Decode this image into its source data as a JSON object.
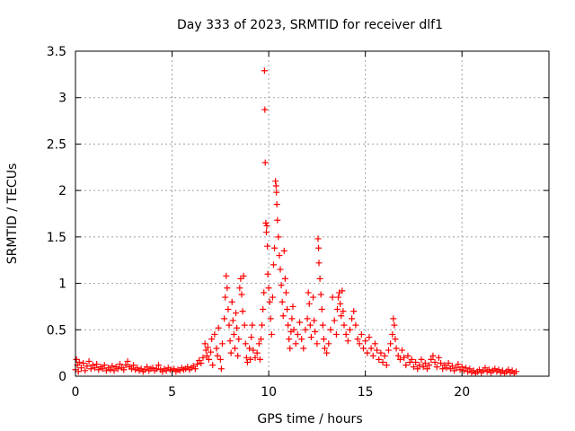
{
  "chart_data": {
    "type": "scatter",
    "title": "Day 333 of 2023, SRMTID for receiver dlf1",
    "xlabel": "GPS time / hours",
    "ylabel": "SRMTID / TECUs",
    "xlim": [
      0,
      24.5
    ],
    "ylim": [
      0,
      3.5
    ],
    "xticks": [
      0,
      5,
      10,
      15,
      20
    ],
    "yticks": [
      0,
      0.5,
      1,
      1.5,
      2,
      2.5,
      3,
      3.5
    ],
    "xtick_labels": [
      "0",
      "5",
      "10",
      "15",
      "20"
    ],
    "ytick_labels": [
      "0",
      "0.5",
      "1",
      "1.5",
      "2",
      "2.5",
      "3",
      "3.5"
    ],
    "grid": true,
    "marker": "+",
    "color": "#ff0000",
    "series": [
      {
        "name": "SRMTID",
        "points": [
          [
            0.0,
            0.07
          ],
          [
            0.05,
            0.18
          ],
          [
            0.1,
            0.12
          ],
          [
            0.15,
            0.05
          ],
          [
            0.2,
            0.15
          ],
          [
            0.3,
            0.09
          ],
          [
            0.4,
            0.14
          ],
          [
            0.5,
            0.06
          ],
          [
            0.6,
            0.11
          ],
          [
            0.7,
            0.16
          ],
          [
            0.8,
            0.08
          ],
          [
            0.9,
            0.12
          ],
          [
            1.0,
            0.09
          ],
          [
            1.1,
            0.13
          ],
          [
            1.2,
            0.07
          ],
          [
            1.3,
            0.1
          ],
          [
            1.4,
            0.08
          ],
          [
            1.5,
            0.12
          ],
          [
            1.6,
            0.06
          ],
          [
            1.7,
            0.09
          ],
          [
            1.8,
            0.07
          ],
          [
            1.9,
            0.11
          ],
          [
            2.0,
            0.06
          ],
          [
            2.1,
            0.1
          ],
          [
            2.2,
            0.08
          ],
          [
            2.3,
            0.13
          ],
          [
            2.4,
            0.09
          ],
          [
            2.5,
            0.07
          ],
          [
            2.6,
            0.12
          ],
          [
            2.7,
            0.16
          ],
          [
            2.8,
            0.1
          ],
          [
            2.9,
            0.08
          ],
          [
            3.0,
            0.12
          ],
          [
            3.1,
            0.07
          ],
          [
            3.2,
            0.09
          ],
          [
            3.3,
            0.06
          ],
          [
            3.4,
            0.08
          ],
          [
            3.5,
            0.05
          ],
          [
            3.6,
            0.07
          ],
          [
            3.7,
            0.1
          ],
          [
            3.8,
            0.06
          ],
          [
            3.9,
            0.08
          ],
          [
            4.0,
            0.09
          ],
          [
            4.1,
            0.06
          ],
          [
            4.2,
            0.08
          ],
          [
            4.3,
            0.12
          ],
          [
            4.4,
            0.07
          ],
          [
            4.5,
            0.05
          ],
          [
            4.6,
            0.08
          ],
          [
            4.7,
            0.06
          ],
          [
            4.8,
            0.09
          ],
          [
            4.9,
            0.07
          ],
          [
            5.0,
            0.06
          ],
          [
            5.1,
            0.08
          ],
          [
            5.2,
            0.05
          ],
          [
            5.3,
            0.07
          ],
          [
            5.4,
            0.06
          ],
          [
            5.5,
            0.09
          ],
          [
            5.6,
            0.07
          ],
          [
            5.7,
            0.08
          ],
          [
            5.8,
            0.1
          ],
          [
            5.9,
            0.07
          ],
          [
            6.0,
            0.09
          ],
          [
            6.1,
            0.11
          ],
          [
            6.2,
            0.08
          ],
          [
            6.3,
            0.13
          ],
          [
            6.4,
            0.17
          ],
          [
            6.5,
            0.14
          ],
          [
            6.6,
            0.2
          ],
          [
            6.7,
            0.35
          ],
          [
            6.75,
            0.28
          ],
          [
            6.8,
            0.22
          ],
          [
            6.85,
            0.31
          ],
          [
            6.9,
            0.18
          ],
          [
            7.0,
            0.26
          ],
          [
            7.05,
            0.4
          ],
          [
            7.1,
            0.12
          ],
          [
            7.2,
            0.45
          ],
          [
            7.3,
            0.3
          ],
          [
            7.35,
            0.22
          ],
          [
            7.4,
            0.52
          ],
          [
            7.5,
            0.18
          ],
          [
            7.55,
            0.08
          ],
          [
            7.6,
            0.35
          ],
          [
            7.7,
            0.62
          ],
          [
            7.75,
            0.85
          ],
          [
            7.8,
            1.08
          ],
          [
            7.85,
            0.95
          ],
          [
            7.9,
            0.72
          ],
          [
            7.95,
            0.55
          ],
          [
            8.0,
            0.38
          ],
          [
            8.05,
            0.25
          ],
          [
            8.1,
            0.8
          ],
          [
            8.15,
            0.6
          ],
          [
            8.2,
            0.45
          ],
          [
            8.25,
            0.3
          ],
          [
            8.3,
            0.68
          ],
          [
            8.35,
            0.52
          ],
          [
            8.4,
            0.22
          ],
          [
            8.45,
            0.4
          ],
          [
            8.5,
            0.95
          ],
          [
            8.55,
            1.05
          ],
          [
            8.6,
            0.88
          ],
          [
            8.65,
            0.7
          ],
          [
            8.7,
            1.08
          ],
          [
            8.75,
            0.55
          ],
          [
            8.8,
            0.35
          ],
          [
            8.85,
            0.2
          ],
          [
            8.9,
            0.15
          ],
          [
            9.0,
            0.3
          ],
          [
            9.05,
            0.18
          ],
          [
            9.1,
            0.42
          ],
          [
            9.15,
            0.55
          ],
          [
            9.2,
            0.28
          ],
          [
            9.3,
            0.2
          ],
          [
            9.4,
            0.25
          ],
          [
            9.5,
            0.35
          ],
          [
            9.55,
            0.18
          ],
          [
            9.6,
            0.4
          ],
          [
            9.65,
            0.55
          ],
          [
            9.7,
            0.72
          ],
          [
            9.75,
            0.9
          ],
          [
            9.78,
            3.29
          ],
          [
            9.8,
            2.87
          ],
          [
            9.82,
            2.3
          ],
          [
            9.85,
            1.65
          ],
          [
            9.88,
            1.55
          ],
          [
            9.9,
            1.62
          ],
          [
            9.93,
            1.4
          ],
          [
            9.95,
            1.1
          ],
          [
            10.0,
            0.95
          ],
          [
            10.05,
            0.8
          ],
          [
            10.1,
            0.62
          ],
          [
            10.15,
            0.45
          ],
          [
            10.2,
            0.85
          ],
          [
            10.25,
            1.2
          ],
          [
            10.3,
            1.38
          ],
          [
            10.35,
            2.1
          ],
          [
            10.38,
            2.05
          ],
          [
            10.4,
            1.98
          ],
          [
            10.42,
            1.85
          ],
          [
            10.45,
            1.68
          ],
          [
            10.5,
            1.5
          ],
          [
            10.55,
            1.3
          ],
          [
            10.6,
            1.15
          ],
          [
            10.65,
            0.98
          ],
          [
            10.7,
            0.8
          ],
          [
            10.75,
            0.65
          ],
          [
            10.8,
            1.35
          ],
          [
            10.85,
            1.05
          ],
          [
            10.9,
            0.9
          ],
          [
            10.95,
            0.72
          ],
          [
            11.0,
            0.55
          ],
          [
            11.05,
            0.4
          ],
          [
            11.1,
            0.3
          ],
          [
            11.15,
            0.48
          ],
          [
            11.2,
            0.62
          ],
          [
            11.25,
            0.75
          ],
          [
            11.3,
            0.5
          ],
          [
            11.4,
            0.35
          ],
          [
            11.5,
            0.45
          ],
          [
            11.6,
            0.58
          ],
          [
            11.7,
            0.4
          ],
          [
            11.8,
            0.3
          ],
          [
            11.9,
            0.5
          ],
          [
            12.0,
            0.62
          ],
          [
            12.05,
            0.9
          ],
          [
            12.1,
            0.78
          ],
          [
            12.15,
            0.55
          ],
          [
            12.2,
            0.42
          ],
          [
            12.3,
            0.85
          ],
          [
            12.35,
            0.6
          ],
          [
            12.4,
            0.48
          ],
          [
            12.5,
            0.35
          ],
          [
            12.55,
            1.48
          ],
          [
            12.58,
            1.38
          ],
          [
            12.6,
            1.22
          ],
          [
            12.65,
            1.05
          ],
          [
            12.7,
            0.88
          ],
          [
            12.75,
            0.72
          ],
          [
            12.8,
            0.55
          ],
          [
            12.85,
            0.4
          ],
          [
            12.9,
            0.3
          ],
          [
            13.0,
            0.25
          ],
          [
            13.1,
            0.35
          ],
          [
            13.2,
            0.5
          ],
          [
            13.3,
            0.85
          ],
          [
            13.4,
            0.6
          ],
          [
            13.5,
            0.45
          ],
          [
            13.55,
            0.72
          ],
          [
            13.6,
            0.85
          ],
          [
            13.65,
            0.9
          ],
          [
            13.7,
            0.78
          ],
          [
            13.75,
            0.65
          ],
          [
            13.8,
            0.92
          ],
          [
            13.85,
            0.7
          ],
          [
            13.9,
            0.55
          ],
          [
            14.0,
            0.45
          ],
          [
            14.1,
            0.38
          ],
          [
            14.2,
            0.5
          ],
          [
            14.3,
            0.62
          ],
          [
            14.4,
            0.7
          ],
          [
            14.5,
            0.55
          ],
          [
            14.6,
            0.4
          ],
          [
            14.7,
            0.35
          ],
          [
            14.8,
            0.45
          ],
          [
            14.9,
            0.3
          ],
          [
            15.0,
            0.38
          ],
          [
            15.1,
            0.25
          ],
          [
            15.2,
            0.42
          ],
          [
            15.3,
            0.3
          ],
          [
            15.4,
            0.22
          ],
          [
            15.5,
            0.35
          ],
          [
            15.6,
            0.28
          ],
          [
            15.7,
            0.18
          ],
          [
            15.8,
            0.25
          ],
          [
            15.9,
            0.15
          ],
          [
            16.0,
            0.22
          ],
          [
            16.1,
            0.12
          ],
          [
            16.2,
            0.28
          ],
          [
            16.3,
            0.35
          ],
          [
            16.4,
            0.45
          ],
          [
            16.45,
            0.62
          ],
          [
            16.5,
            0.55
          ],
          [
            16.55,
            0.4
          ],
          [
            16.6,
            0.3
          ],
          [
            16.7,
            0.22
          ],
          [
            16.8,
            0.18
          ],
          [
            16.9,
            0.28
          ],
          [
            17.0,
            0.2
          ],
          [
            17.1,
            0.12
          ],
          [
            17.2,
            0.22
          ],
          [
            17.3,
            0.15
          ],
          [
            17.4,
            0.18
          ],
          [
            17.5,
            0.1
          ],
          [
            17.6,
            0.15
          ],
          [
            17.7,
            0.08
          ],
          [
            17.8,
            0.12
          ],
          [
            17.9,
            0.18
          ],
          [
            18.0,
            0.1
          ],
          [
            18.1,
            0.14
          ],
          [
            18.2,
            0.08
          ],
          [
            18.3,
            0.12
          ],
          [
            18.4,
            0.18
          ],
          [
            18.5,
            0.22
          ],
          [
            18.6,
            0.15
          ],
          [
            18.7,
            0.1
          ],
          [
            18.8,
            0.2
          ],
          [
            18.9,
            0.14
          ],
          [
            19.0,
            0.08
          ],
          [
            19.1,
            0.12
          ],
          [
            19.2,
            0.09
          ],
          [
            19.3,
            0.14
          ],
          [
            19.4,
            0.08
          ],
          [
            19.5,
            0.11
          ],
          [
            19.6,
            0.06
          ],
          [
            19.7,
            0.09
          ],
          [
            19.8,
            0.13
          ],
          [
            19.9,
            0.07
          ],
          [
            20.0,
            0.1
          ],
          [
            20.1,
            0.06
          ],
          [
            20.2,
            0.09
          ],
          [
            20.3,
            0.05
          ],
          [
            20.4,
            0.08
          ],
          [
            20.5,
            0.04
          ],
          [
            20.6,
            0.06
          ],
          [
            20.7,
            0.03
          ],
          [
            20.8,
            0.05
          ],
          [
            20.9,
            0.07
          ],
          [
            21.0,
            0.04
          ],
          [
            21.1,
            0.06
          ],
          [
            21.2,
            0.09
          ],
          [
            21.3,
            0.05
          ],
          [
            21.4,
            0.07
          ],
          [
            21.5,
            0.04
          ],
          [
            21.6,
            0.06
          ],
          [
            21.7,
            0.08
          ],
          [
            21.8,
            0.05
          ],
          [
            21.9,
            0.07
          ],
          [
            22.0,
            0.04
          ],
          [
            22.1,
            0.06
          ],
          [
            22.2,
            0.03
          ],
          [
            22.3,
            0.05
          ],
          [
            22.4,
            0.07
          ],
          [
            22.5,
            0.04
          ],
          [
            22.6,
            0.06
          ],
          [
            22.7,
            0.03
          ],
          [
            22.8,
            0.05
          ]
        ]
      }
    ]
  }
}
